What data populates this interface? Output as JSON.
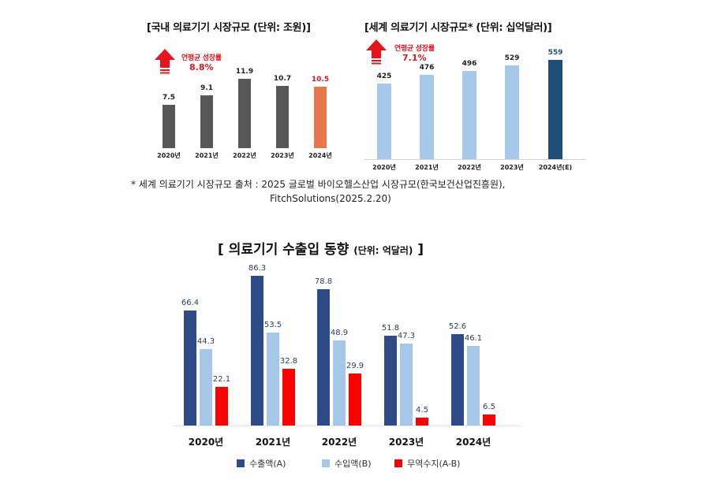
{
  "domestic": {
    "title": "[국내 의료기기 시장규모 (단위: 조원)]",
    "growth_label": "연평균 성장률",
    "growth_value": "8.8%"
  },
  "global": {
    "title": "[세계 의료기기 시장규모* (단위: 십억달러)]",
    "growth_label": "연평균 성장률",
    "growth_value": "7.1%"
  },
  "source_note": {
    "line1": "* 세계 의료기기 시장규모 출처 : 2025 글로벌 바이오헬스산업 시장규모(한국보건산업진흥원),",
    "line2": "FitchSolutions(2025.2.20)"
  },
  "trade": {
    "title": "[ 의료기기 수출입 동향",
    "unit": "(단위: 억달러)",
    "title_end": "]",
    "legend": [
      "수출액(A)",
      "수입액(B)",
      "무역수지(A-B)"
    ]
  },
  "colors": {
    "domestic_bar": "#575757",
    "domestic_highlight": "#e8774d",
    "global_bar": "#a6c9ea",
    "global_highlight": "#1f4e79",
    "export": "#2e4a87",
    "import": "#a6c8e8",
    "trade_balance": "#ff0000",
    "growth_red": "#e8141b"
  },
  "chart_data": [
    {
      "type": "bar",
      "title": "[국내 의료기기 시장규모 (단위: 조원)]",
      "categories": [
        "2020년",
        "2021년",
        "2022년",
        "2023년",
        "2024년"
      ],
      "values": [
        7.5,
        9.1,
        11.9,
        10.7,
        10.5
      ],
      "value_labels": [
        "7.5",
        "9.1",
        "11.9",
        "10.7",
        "10.5"
      ],
      "annotation": "연평균 성장률 8.8%",
      "highlight_index": 4,
      "xlabel": "",
      "ylabel": "조원",
      "grid": false,
      "legend": null
    },
    {
      "type": "bar",
      "title": "[세계 의료기기 시장규모* (단위: 십억달러)]",
      "categories": [
        "2020년",
        "2021년",
        "2022년",
        "2023년",
        "2024년(E)"
      ],
      "values": [
        425,
        476,
        496,
        529,
        559
      ],
      "value_labels": [
        "425",
        "476",
        "496",
        "529",
        "559"
      ],
      "annotation": "연평균 성장률 7.1%",
      "highlight_index": 4,
      "xlabel": "",
      "ylabel": "십억달러",
      "grid": false,
      "legend": null
    },
    {
      "type": "bar",
      "title": "[ 의료기기 수출입 동향 (단위: 억달러) ]",
      "categories": [
        "2020년",
        "2021년",
        "2022년",
        "2023년",
        "2024년"
      ],
      "series": [
        {
          "name": "수출액(A)",
          "values": [
            66.4,
            86.3,
            78.8,
            51.8,
            52.6
          ]
        },
        {
          "name": "수입액(B)",
          "values": [
            44.3,
            53.5,
            48.9,
            47.3,
            46.1
          ]
        },
        {
          "name": "무역수지(A-B)",
          "values": [
            22.1,
            32.8,
            29.9,
            4.5,
            6.5
          ]
        }
      ],
      "xlabel": "",
      "ylabel": "억달러",
      "grid": false,
      "legend_position": "bottom"
    }
  ]
}
